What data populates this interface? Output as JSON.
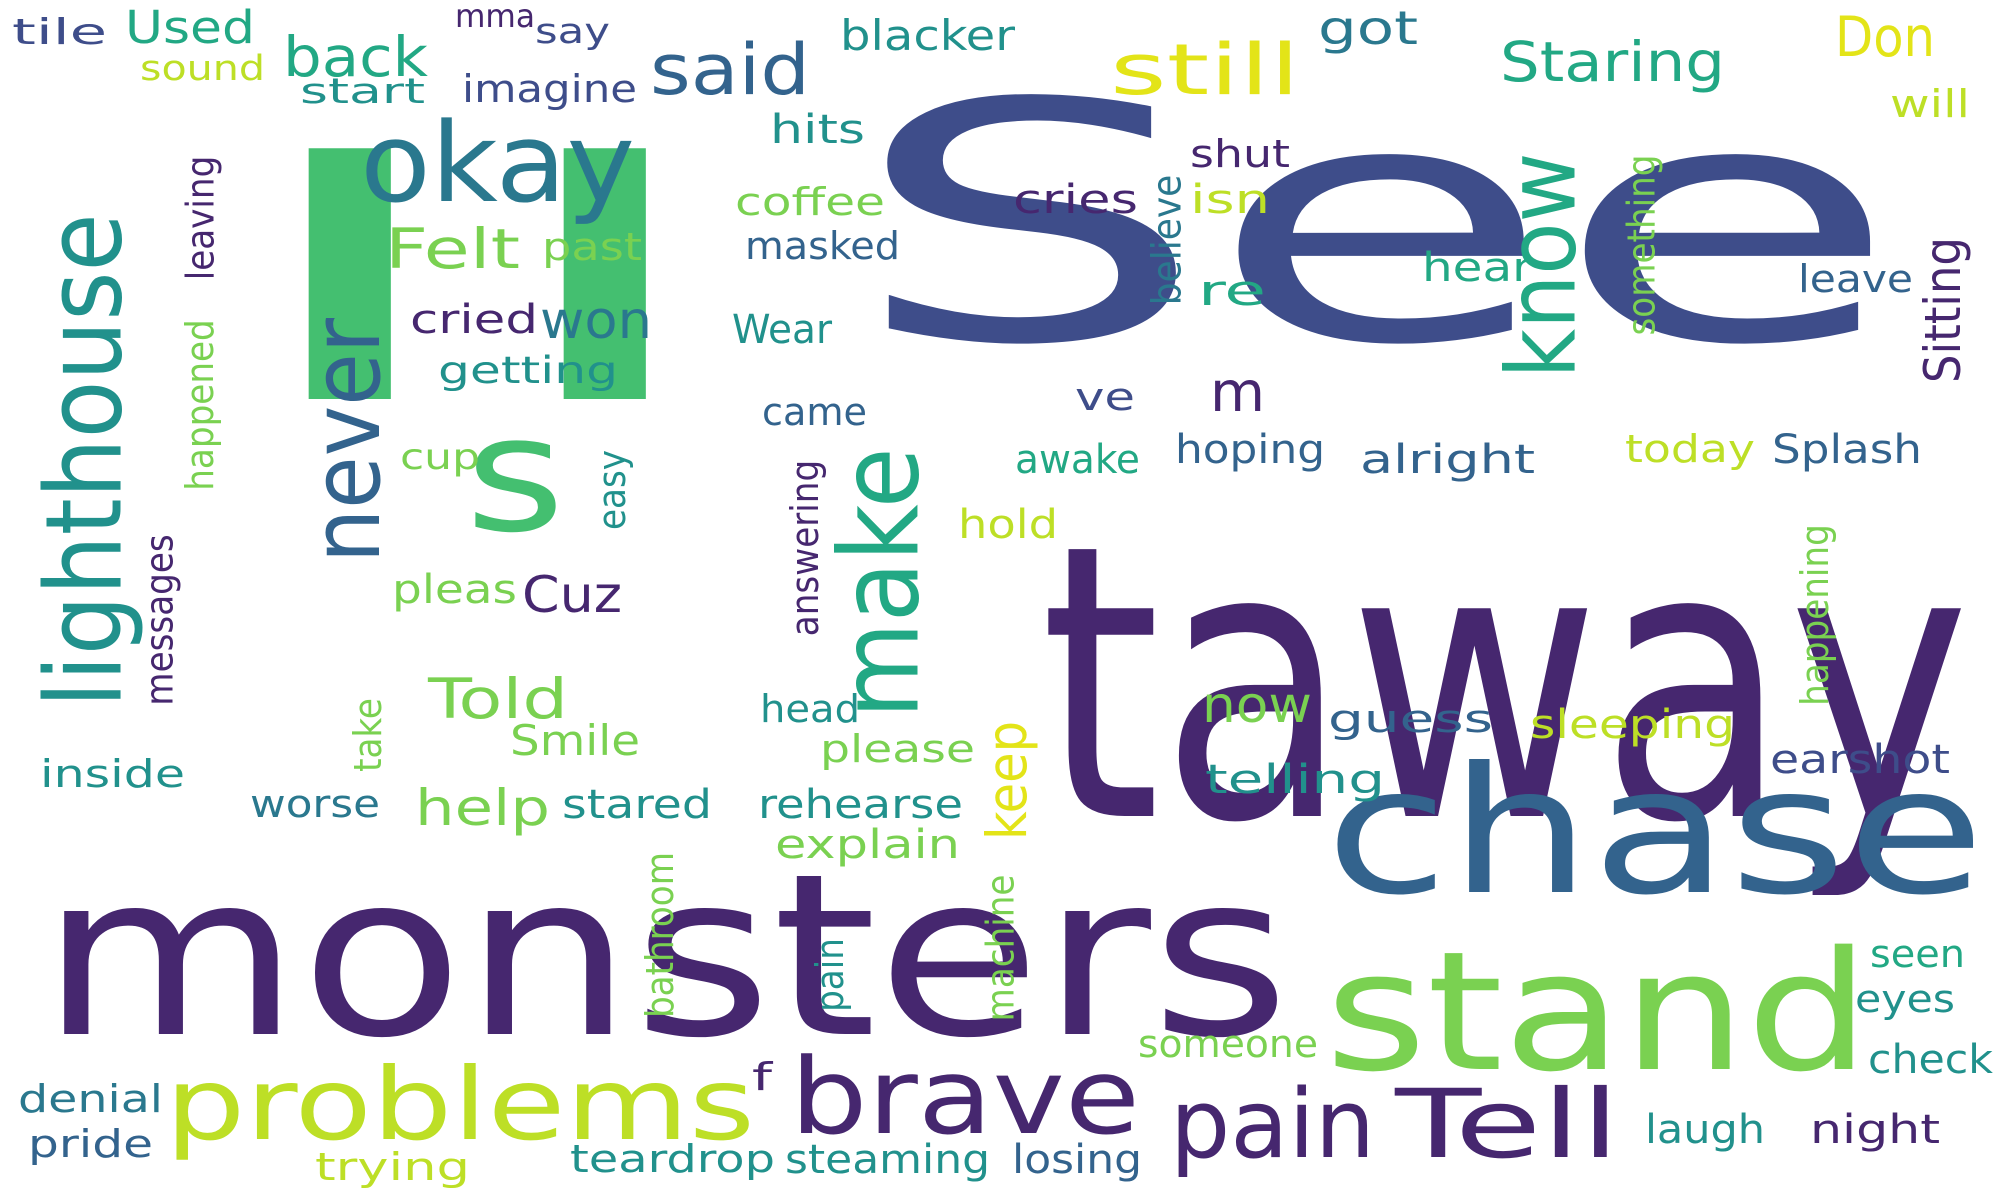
{
  "palette": {
    "deep_purple": "#46276f",
    "indigo": "#3e4d8a",
    "blue": "#33638d",
    "teal_blue": "#2a788e",
    "teal": "#21918c",
    "green_teal": "#22a884",
    "green": "#44bf70",
    "light_green": "#7ad151",
    "yellow_green": "#bddf26",
    "yellow": "#e3e418"
  },
  "words": [
    {
      "text": "See"
    },
    {
      "text": "taway"
    },
    {
      "text": "monsters"
    },
    {
      "text": "chase"
    },
    {
      "text": "stand"
    },
    {
      "text": "ll"
    },
    {
      "text": "brave"
    },
    {
      "text": "problems"
    },
    {
      "text": "pain"
    },
    {
      "text": "Tell"
    },
    {
      "text": "okay"
    },
    {
      "text": "s"
    },
    {
      "text": "make"
    },
    {
      "text": "know"
    },
    {
      "text": "lighthouse"
    },
    {
      "text": "never"
    },
    {
      "text": "said"
    },
    {
      "text": "still"
    },
    {
      "text": "Staring"
    },
    {
      "text": "Don"
    },
    {
      "text": "back"
    },
    {
      "text": "Used"
    },
    {
      "text": "tile"
    },
    {
      "text": "sound"
    },
    {
      "text": "start"
    },
    {
      "text": "mma"
    },
    {
      "text": "say"
    },
    {
      "text": "imagine"
    },
    {
      "text": "blacker"
    },
    {
      "text": "got"
    },
    {
      "text": "will"
    },
    {
      "text": "hits"
    },
    {
      "text": "coffee"
    },
    {
      "text": "masked"
    },
    {
      "text": "Wear"
    },
    {
      "text": "came"
    },
    {
      "text": "Felt"
    },
    {
      "text": "past"
    },
    {
      "text": "cried"
    },
    {
      "text": "won"
    },
    {
      "text": "getting"
    },
    {
      "text": "cup"
    },
    {
      "text": "pleas"
    },
    {
      "text": "Cuz"
    },
    {
      "text": "Told"
    },
    {
      "text": "Smile"
    },
    {
      "text": "help"
    },
    {
      "text": "stared"
    },
    {
      "text": "worse"
    },
    {
      "text": "inside"
    },
    {
      "text": "rehearse"
    },
    {
      "text": "please"
    },
    {
      "text": "explain"
    },
    {
      "text": "head"
    },
    {
      "text": "hold"
    },
    {
      "text": "awake"
    },
    {
      "text": "hoping"
    },
    {
      "text": "alright"
    },
    {
      "text": "ve"
    },
    {
      "text": "m"
    },
    {
      "text": "re"
    },
    {
      "text": "isn"
    },
    {
      "text": "cries"
    },
    {
      "text": "shut"
    },
    {
      "text": "hear"
    },
    {
      "text": "leave"
    },
    {
      "text": "today"
    },
    {
      "text": "Splash"
    },
    {
      "text": "now"
    },
    {
      "text": "guess"
    },
    {
      "text": "sleeping"
    },
    {
      "text": "telling"
    },
    {
      "text": "earshot"
    },
    {
      "text": "seen"
    },
    {
      "text": "eyes"
    },
    {
      "text": "check"
    },
    {
      "text": "someone"
    },
    {
      "text": "laugh"
    },
    {
      "text": "night"
    },
    {
      "text": "denial"
    },
    {
      "text": "pride"
    },
    {
      "text": "trying"
    },
    {
      "text": "teardrop"
    },
    {
      "text": "steaming"
    },
    {
      "text": "losing"
    },
    {
      "text": "f"
    },
    {
      "text": "leaving"
    },
    {
      "text": "happened"
    },
    {
      "text": "messages"
    },
    {
      "text": "take"
    },
    {
      "text": "easy"
    },
    {
      "text": "answering"
    },
    {
      "text": "keep"
    },
    {
      "text": "bathroom"
    },
    {
      "text": "machine"
    },
    {
      "text": "pain"
    },
    {
      "text": "believe"
    },
    {
      "text": "something"
    },
    {
      "text": "Sitting"
    },
    {
      "text": "happening"
    }
  ]
}
